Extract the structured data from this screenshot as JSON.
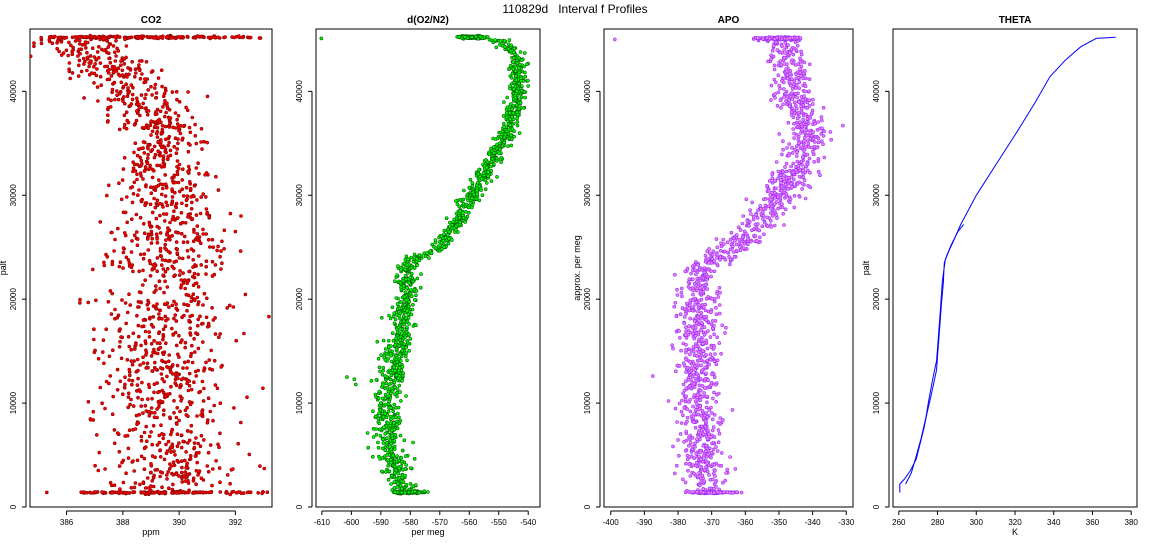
{
  "page": {
    "title": "110829d   Interval f Profiles"
  },
  "colors": {
    "co2_fill": "#ff0000",
    "co2_edge": "#8b0000",
    "o2_fill": "#00ff00",
    "o2_edge": "#006400",
    "apo_fill": "#ee82ee",
    "apo_edge": "#9b30ff",
    "theta_line": "#0000ff"
  },
  "chart_data": [
    {
      "id": "co2",
      "type": "scatter",
      "title": "CO2",
      "xlabel": "ppm",
      "ylabel": "palt",
      "xlim": [
        384.7,
        393.3
      ],
      "ylim": [
        0,
        46000
      ],
      "xticks": [
        386,
        388,
        390,
        392
      ],
      "yticks": [
        0,
        10000,
        20000,
        30000,
        40000
      ],
      "profile": [
        [
          1200,
          389.6,
          1.1
        ],
        [
          5000,
          389.7,
          1.1
        ],
        [
          10000,
          389.6,
          1.1
        ],
        [
          15000,
          389.5,
          1.1
        ],
        [
          20000,
          389.5,
          1.2
        ],
        [
          25000,
          389.6,
          1.1
        ],
        [
          30000,
          389.6,
          0.9
        ],
        [
          33000,
          389.4,
          0.8
        ],
        [
          36000,
          389.3,
          0.7
        ],
        [
          38000,
          389.0,
          0.8
        ],
        [
          40000,
          388.4,
          0.9
        ],
        [
          42000,
          387.8,
          0.8
        ],
        [
          44000,
          386.9,
          0.9
        ],
        [
          45000,
          386.3,
          0.8
        ]
      ],
      "cap": [
        45200,
        389.0,
        2.2
      ],
      "base": [
        1400,
        389.5,
        1.6
      ],
      "outliers": [
        [
          385.4,
          44800
        ],
        [
          392.2,
          28000
        ],
        [
          392.0,
          26500
        ],
        [
          387.4,
          24300
        ],
        [
          392.3,
          16700
        ],
        [
          387.2,
          11500
        ],
        [
          391.8,
          19400
        ]
      ],
      "n_points": 1400,
      "seed": 11
    },
    {
      "id": "o2n2",
      "type": "scatter",
      "title": "d(O2/N2)",
      "xlabel": "per meg",
      "ylabel": "",
      "xlim": [
        -612,
        -536
      ],
      "ylim": [
        0,
        46000
      ],
      "xticks": [
        -610,
        -600,
        -590,
        -580,
        -570,
        -560,
        -550,
        -540
      ],
      "yticks": [
        0,
        10000,
        20000,
        30000,
        40000
      ],
      "profile": [
        [
          1200,
          -581,
          2.0
        ],
        [
          3000,
          -584,
          2.5
        ],
        [
          5000,
          -586,
          2.5
        ],
        [
          7000,
          -587,
          2.5
        ],
        [
          9000,
          -588,
          2.5
        ],
        [
          11000,
          -587,
          2.5
        ],
        [
          13000,
          -585,
          2.5
        ],
        [
          15000,
          -585,
          2.5
        ],
        [
          17000,
          -583,
          2.0
        ],
        [
          19000,
          -582,
          2.0
        ],
        [
          21000,
          -581,
          2.0
        ],
        [
          23000,
          -582,
          1.8
        ],
        [
          24000,
          -578,
          1.6
        ],
        [
          25000,
          -570,
          1.6
        ],
        [
          26500,
          -566,
          1.5
        ],
        [
          28000,
          -563,
          1.5
        ],
        [
          30000,
          -559,
          1.5
        ],
        [
          33000,
          -553,
          1.5
        ],
        [
          35000,
          -549,
          1.4
        ],
        [
          38000,
          -545,
          1.4
        ],
        [
          41000,
          -543,
          1.4
        ],
        [
          43500,
          -544,
          1.4
        ],
        [
          44800,
          -550,
          1.6
        ]
      ],
      "cap": [
        45200,
        -559,
        2.0
      ],
      "base": [
        1400,
        -580,
        2.5
      ],
      "outliers": [
        [
          -610.2,
          45100
        ],
        [
          -601.5,
          12500
        ],
        [
          -598.5,
          11800
        ],
        [
          -599.0,
          12300
        ]
      ],
      "n_points": 1400,
      "seed": 23
    },
    {
      "id": "apo",
      "type": "scatter",
      "title": "APO",
      "xlabel": "",
      "ylabel": "approx. per meg",
      "xlim": [
        -402,
        -328
      ],
      "ylim": [
        0,
        46000
      ],
      "xticks": [
        -400,
        -390,
        -380,
        -370,
        -360,
        -350,
        -340,
        -330
      ],
      "yticks": [
        0,
        10000,
        20000,
        30000,
        40000
      ],
      "profile": [
        [
          1200,
          -372,
          3.0
        ],
        [
          5000,
          -373,
          3.3
        ],
        [
          10000,
          -374,
          3.3
        ],
        [
          15000,
          -374,
          3.0
        ],
        [
          20000,
          -374,
          3.0
        ],
        [
          23000,
          -373,
          3.0
        ],
        [
          25000,
          -364,
          3.0
        ],
        [
          27000,
          -356,
          3.0
        ],
        [
          30000,
          -350,
          3.0
        ],
        [
          33000,
          -344,
          3.0
        ],
        [
          36000,
          -341,
          3.0
        ],
        [
          39000,
          -345,
          3.0
        ],
        [
          42000,
          -347,
          3.0
        ],
        [
          44500,
          -349,
          3.0
        ]
      ],
      "cap": [
        45100,
        -350,
        3.2
      ],
      "base": [
        1400,
        -370,
        3.4
      ],
      "outliers": [
        [
          -398.8,
          45000
        ],
        [
          -387.5,
          12600
        ],
        [
          -331.0,
          36700
        ]
      ],
      "n_points": 1400,
      "seed": 37
    },
    {
      "id": "theta",
      "type": "line",
      "title": "THETA",
      "xlabel": "K",
      "ylabel": "palt",
      "xlim": [
        257,
        383
      ],
      "ylim": [
        0,
        46000
      ],
      "xticks": [
        260,
        280,
        300,
        320,
        340,
        360,
        380
      ],
      "yticks": [
        0,
        10000,
        20000,
        30000,
        40000
      ],
      "series": [
        {
          "values": [
            [
              260.5,
              1400
            ],
            [
              260.5,
              2200
            ],
            [
              263,
              2700
            ],
            [
              266,
              3500
            ],
            [
              269,
              4600
            ],
            [
              271,
              6100
            ],
            [
              273,
              7600
            ],
            [
              274.5,
              9000
            ],
            [
              276.5,
              10600
            ],
            [
              278,
              11900
            ],
            [
              279.5,
              13200
            ],
            [
              280,
              14500
            ],
            [
              281,
              17000
            ],
            [
              282,
              19500
            ],
            [
              283,
              21500
            ],
            [
              283.5,
              23500
            ],
            [
              285,
              24300
            ],
            [
              288,
              25500
            ],
            [
              292,
              27200
            ],
            [
              300,
              30000
            ],
            [
              310,
              32900
            ],
            [
              320,
              35800
            ],
            [
              330,
              38800
            ],
            [
              338,
              41400
            ],
            [
              346,
              43000
            ],
            [
              354,
              44300
            ],
            [
              362,
              45100
            ],
            [
              372,
              45200
            ]
          ]
        },
        {
          "values": [
            [
              263.5,
              2200
            ],
            [
              266.5,
              3300
            ],
            [
              269,
              4900
            ],
            [
              271.5,
              6600
            ],
            [
              274,
              8600
            ],
            [
              275.5,
              10300
            ],
            [
              277.5,
              12300
            ],
            [
              279.5,
              14100
            ],
            [
              280.5,
              16500
            ],
            [
              281.5,
              19000
            ],
            [
              282.5,
              21800
            ],
            [
              284,
              23800
            ],
            [
              287,
              25200
            ],
            [
              290.5,
              26500
            ],
            [
              293.5,
              27200
            ]
          ]
        }
      ]
    }
  ]
}
